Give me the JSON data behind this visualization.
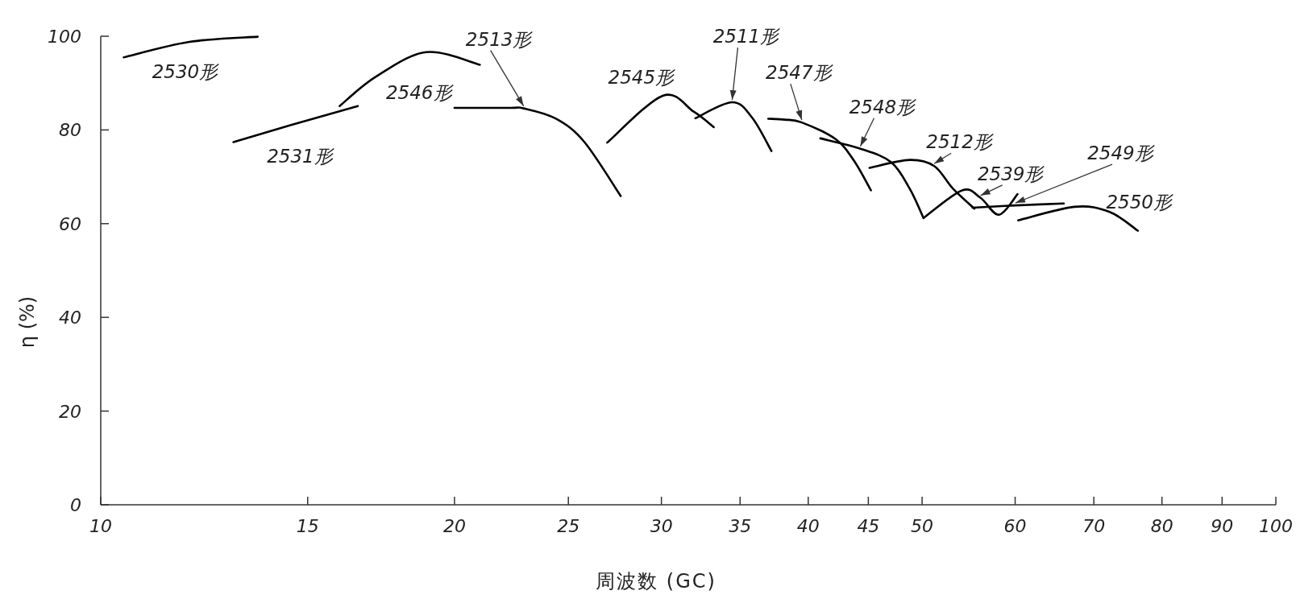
{
  "chart_data": {
    "type": "line",
    "xlabel": "周波数 (GC)",
    "ylabel": "η (%)",
    "log": "x",
    "xlim": [
      10,
      100
    ],
    "ylim": [
      0,
      100
    ],
    "xticks": [
      10,
      15,
      20,
      25,
      30,
      35,
      40,
      45,
      50,
      60,
      70,
      80,
      90,
      100
    ],
    "yticks": [
      0,
      20,
      40,
      60,
      80,
      100
    ],
    "marker": "none",
    "line_style": "solid",
    "legend": false,
    "series": [
      {
        "name": "2530形",
        "color": "#000000",
        "x": [
          10.46,
          11.9,
          13.6
        ],
        "values": [
          95.5,
          98.8,
          99.9
        ]
      },
      {
        "name": "2531形",
        "color": "#000000",
        "x": [
          12.97,
          14.5,
          16.55
        ],
        "values": [
          77.4,
          81,
          85.1
        ]
      },
      {
        "name": "2546形",
        "color": "#000000",
        "x": [
          15.97,
          17.13,
          18.92,
          21.02
        ],
        "values": [
          85.1,
          91.3,
          96.6,
          93.9
        ]
      },
      {
        "name": "2513形",
        "color": "#000000",
        "x": [
          20.0,
          22.3,
          22.9,
          24.4,
          25.8,
          27.7
        ],
        "values": [
          84.7,
          84.7,
          84.6,
          82.4,
          77.4,
          65.9
        ]
      },
      {
        "name": "2545形",
        "color": "#000000",
        "x": [
          26.98,
          30.08,
          31.96,
          33.24
        ],
        "values": [
          77.3,
          87.3,
          83.9,
          80.6
        ]
      },
      {
        "name": "2511形",
        "color": "#000000",
        "x": [
          32.06,
          34.46,
          35.84,
          37.22
        ],
        "values": [
          82.5,
          85.9,
          82.6,
          75.5
        ]
      },
      {
        "name": "2547形",
        "color": "#000000",
        "x": [
          36.99,
          38.2,
          39.5,
          42.22,
          43.76,
          45.23
        ],
        "values": [
          82.4,
          82.2,
          81.6,
          78.0,
          73.4,
          67.1
        ]
      },
      {
        "name": "2548形",
        "color": "#000000",
        "x": [
          40.96,
          44.3,
          47.06,
          48.79,
          50.14
        ],
        "values": [
          78.2,
          76.0,
          73.1,
          67.5,
          61.2
        ]
      },
      {
        "name": "2512形",
        "color": "#000000",
        "x": [
          45.1,
          48.79,
          51.2,
          53.1,
          55.4
        ],
        "values": [
          71.9,
          73.6,
          72.3,
          67.5,
          63.2
        ]
      },
      {
        "name": "2539形",
        "color": "#000000",
        "x": [
          50.14,
          54.07,
          56.07,
          58.13,
          60.28
        ],
        "values": [
          61.2,
          67.1,
          65.5,
          61.9,
          66.3
        ]
      },
      {
        "name": "2549形",
        "color": "#000000",
        "x": [
          55.2,
          60.04,
          66.0
        ],
        "values": [
          63.4,
          63.9,
          64.3
        ]
      },
      {
        "name": "2550形",
        "color": "#000000",
        "x": [
          60.35,
          67.4,
          72.2,
          76.3
        ],
        "values": [
          60.7,
          63.6,
          62.5,
          58.5
        ]
      }
    ]
  }
}
